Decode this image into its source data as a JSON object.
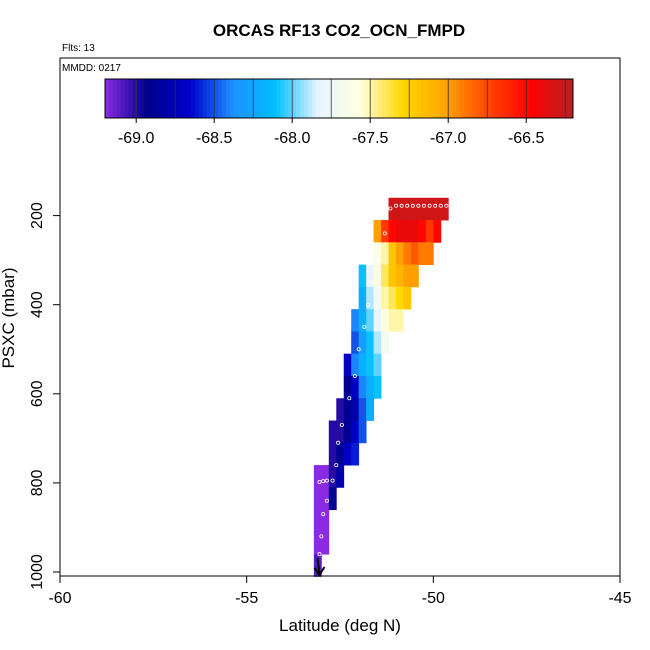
{
  "chart_data": {
    "type": "heatmap",
    "title": "ORCAS RF13 CO2_OCN_FMPD",
    "notes": [
      "Flts: 13",
      "MMDD: 0217"
    ],
    "xlabel": "Latitude (deg N)",
    "ylabel": "PSXC (mbar)",
    "xlim": [
      -60,
      -45
    ],
    "ylim": [
      1000,
      0
    ],
    "x_ticks": [
      -60,
      -55,
      -50,
      -45
    ],
    "y_ticks": [
      200,
      400,
      600,
      800,
      1000
    ],
    "colorbar": {
      "range": [
        -69.2,
        -66.2
      ],
      "ticks": [
        -69.0,
        -68.5,
        -68.0,
        -67.5,
        -67.0,
        -66.5
      ],
      "colors": [
        "#8a2be2",
        "#00008b",
        "#0000cd",
        "#1e90ff",
        "#00bfff",
        "#e6f4ff",
        "#ffffe0",
        "#ffd700",
        "#ffa500",
        "#ff4500",
        "#ff0000",
        "#b22222"
      ]
    },
    "cells": [
      {
        "lat": -51.1,
        "p": 185,
        "v": -66.3
      },
      {
        "lat": -50.9,
        "p": 185,
        "v": -66.3
      },
      {
        "lat": -50.7,
        "p": 185,
        "v": -66.3
      },
      {
        "lat": -50.5,
        "p": 185,
        "v": -66.3
      },
      {
        "lat": -50.3,
        "p": 185,
        "v": -66.3
      },
      {
        "lat": -50.1,
        "p": 185,
        "v": -66.3
      },
      {
        "lat": -49.9,
        "p": 185,
        "v": -66.3
      },
      {
        "lat": -49.7,
        "p": 185,
        "v": -66.3
      },
      {
        "lat": -51.5,
        "p": 235,
        "v": -67.0
      },
      {
        "lat": -51.3,
        "p": 235,
        "v": -66.7
      },
      {
        "lat": -51.1,
        "p": 235,
        "v": -66.5
      },
      {
        "lat": -50.9,
        "p": 235,
        "v": -66.4
      },
      {
        "lat": -50.7,
        "p": 235,
        "v": -66.4
      },
      {
        "lat": -50.5,
        "p": 235,
        "v": -66.4
      },
      {
        "lat": -50.3,
        "p": 235,
        "v": -66.5
      },
      {
        "lat": -50.1,
        "p": 235,
        "v": -66.7
      },
      {
        "lat": -49.9,
        "p": 235,
        "v": -66.5
      },
      {
        "lat": -51.5,
        "p": 285,
        "v": -67.6
      },
      {
        "lat": -51.3,
        "p": 285,
        "v": -67.5
      },
      {
        "lat": -51.1,
        "p": 285,
        "v": -67.2
      },
      {
        "lat": -50.9,
        "p": 285,
        "v": -67.0
      },
      {
        "lat": -50.7,
        "p": 285,
        "v": -66.9
      },
      {
        "lat": -50.5,
        "p": 285,
        "v": -66.8
      },
      {
        "lat": -50.3,
        "p": 285,
        "v": -66.9
      },
      {
        "lat": -50.1,
        "p": 285,
        "v": -66.9
      },
      {
        "lat": -51.9,
        "p": 335,
        "v": -68.1
      },
      {
        "lat": -51.7,
        "p": 335,
        "v": -67.8
      },
      {
        "lat": -51.5,
        "p": 335,
        "v": -67.6
      },
      {
        "lat": -51.3,
        "p": 335,
        "v": -67.4
      },
      {
        "lat": -51.1,
        "p": 335,
        "v": -67.2
      },
      {
        "lat": -50.9,
        "p": 335,
        "v": -67.1
      },
      {
        "lat": -50.7,
        "p": 335,
        "v": -67.0
      },
      {
        "lat": -50.5,
        "p": 335,
        "v": -67.0
      },
      {
        "lat": -51.9,
        "p": 385,
        "v": -68.2
      },
      {
        "lat": -51.7,
        "p": 385,
        "v": -67.9
      },
      {
        "lat": -51.5,
        "p": 385,
        "v": -67.7
      },
      {
        "lat": -51.3,
        "p": 385,
        "v": -67.5
      },
      {
        "lat": -51.1,
        "p": 385,
        "v": -67.4
      },
      {
        "lat": -50.9,
        "p": 385,
        "v": -67.3
      },
      {
        "lat": -50.7,
        "p": 385,
        "v": -67.2
      },
      {
        "lat": -52.1,
        "p": 435,
        "v": -68.4
      },
      {
        "lat": -51.9,
        "p": 435,
        "v": -68.2
      },
      {
        "lat": -51.7,
        "p": 435,
        "v": -68.0
      },
      {
        "lat": -51.5,
        "p": 435,
        "v": -67.8
      },
      {
        "lat": -51.3,
        "p": 435,
        "v": -67.6
      },
      {
        "lat": -51.1,
        "p": 435,
        "v": -67.5
      },
      {
        "lat": -50.9,
        "p": 435,
        "v": -67.5
      },
      {
        "lat": -52.1,
        "p": 485,
        "v": -68.5
      },
      {
        "lat": -51.9,
        "p": 485,
        "v": -68.3
      },
      {
        "lat": -51.7,
        "p": 485,
        "v": -68.1
      },
      {
        "lat": -51.5,
        "p": 485,
        "v": -67.9
      },
      {
        "lat": -51.3,
        "p": 485,
        "v": -67.7
      },
      {
        "lat": -52.3,
        "p": 535,
        "v": -68.7
      },
      {
        "lat": -52.1,
        "p": 535,
        "v": -68.4
      },
      {
        "lat": -51.9,
        "p": 535,
        "v": -68.2
      },
      {
        "lat": -51.7,
        "p": 535,
        "v": -68.1
      },
      {
        "lat": -51.5,
        "p": 535,
        "v": -68.0
      },
      {
        "lat": -52.3,
        "p": 585,
        "v": -68.9
      },
      {
        "lat": -52.1,
        "p": 585,
        "v": -68.7
      },
      {
        "lat": -51.9,
        "p": 585,
        "v": -68.4
      },
      {
        "lat": -51.7,
        "p": 585,
        "v": -68.2
      },
      {
        "lat": -51.5,
        "p": 585,
        "v": -68.1
      },
      {
        "lat": -52.5,
        "p": 635,
        "v": -69.0
      },
      {
        "lat": -52.3,
        "p": 635,
        "v": -68.9
      },
      {
        "lat": -52.1,
        "p": 635,
        "v": -68.8
      },
      {
        "lat": -51.9,
        "p": 635,
        "v": -68.5
      },
      {
        "lat": -51.7,
        "p": 635,
        "v": -68.2
      },
      {
        "lat": -52.7,
        "p": 685,
        "v": -69.0
      },
      {
        "lat": -52.5,
        "p": 685,
        "v": -69.0
      },
      {
        "lat": -52.3,
        "p": 685,
        "v": -68.9
      },
      {
        "lat": -52.1,
        "p": 685,
        "v": -68.7
      },
      {
        "lat": -51.9,
        "p": 685,
        "v": -68.5
      },
      {
        "lat": -52.7,
        "p": 735,
        "v": -69.0
      },
      {
        "lat": -52.5,
        "p": 735,
        "v": -68.9
      },
      {
        "lat": -52.3,
        "p": 735,
        "v": -68.7
      },
      {
        "lat": -52.1,
        "p": 735,
        "v": -68.6
      },
      {
        "lat": -53.1,
        "p": 785,
        "v": -69.2
      },
      {
        "lat": -52.9,
        "p": 785,
        "v": -69.2
      },
      {
        "lat": -52.7,
        "p": 785,
        "v": -69.0
      },
      {
        "lat": -52.5,
        "p": 785,
        "v": -68.8
      },
      {
        "lat": -53.1,
        "p": 835,
        "v": -69.2
      },
      {
        "lat": -52.9,
        "p": 835,
        "v": -69.2
      },
      {
        "lat": -52.7,
        "p": 835,
        "v": -68.9
      },
      {
        "lat": -53.1,
        "p": 885,
        "v": -69.2
      },
      {
        "lat": -52.9,
        "p": 885,
        "v": -69.2
      },
      {
        "lat": -53.1,
        "p": 935,
        "v": -69.2
      },
      {
        "lat": -52.9,
        "p": 935,
        "v": -69.2
      },
      {
        "lat": -53.1,
        "p": 985,
        "v": -69.1
      }
    ],
    "points": [
      {
        "lat": -51.0,
        "p": 178
      },
      {
        "lat": -50.85,
        "p": 178
      },
      {
        "lat": -50.7,
        "p": 178
      },
      {
        "lat": -50.55,
        "p": 178
      },
      {
        "lat": -50.4,
        "p": 178
      },
      {
        "lat": -50.25,
        "p": 178
      },
      {
        "lat": -50.1,
        "p": 178
      },
      {
        "lat": -49.95,
        "p": 178
      },
      {
        "lat": -49.8,
        "p": 178
      },
      {
        "lat": -49.65,
        "p": 178
      },
      {
        "lat": -51.15,
        "p": 184
      },
      {
        "lat": -51.3,
        "p": 240
      },
      {
        "lat": -51.5,
        "p": 300
      },
      {
        "lat": -51.65,
        "p": 350
      },
      {
        "lat": -51.75,
        "p": 400
      },
      {
        "lat": -51.85,
        "p": 450
      },
      {
        "lat": -52.0,
        "p": 500
      },
      {
        "lat": -52.1,
        "p": 560
      },
      {
        "lat": -52.25,
        "p": 610
      },
      {
        "lat": -52.45,
        "p": 670
      },
      {
        "lat": -52.55,
        "p": 710
      },
      {
        "lat": -52.6,
        "p": 760
      },
      {
        "lat": -52.7,
        "p": 795
      },
      {
        "lat": -52.85,
        "p": 795
      },
      {
        "lat": -52.95,
        "p": 796
      },
      {
        "lat": -53.05,
        "p": 798
      },
      {
        "lat": -52.85,
        "p": 840
      },
      {
        "lat": -52.95,
        "p": 870
      },
      {
        "lat": -53.0,
        "p": 920
      },
      {
        "lat": -53.05,
        "p": 960
      }
    ],
    "arrow": {
      "lat": -53.05,
      "p": 1000
    }
  }
}
